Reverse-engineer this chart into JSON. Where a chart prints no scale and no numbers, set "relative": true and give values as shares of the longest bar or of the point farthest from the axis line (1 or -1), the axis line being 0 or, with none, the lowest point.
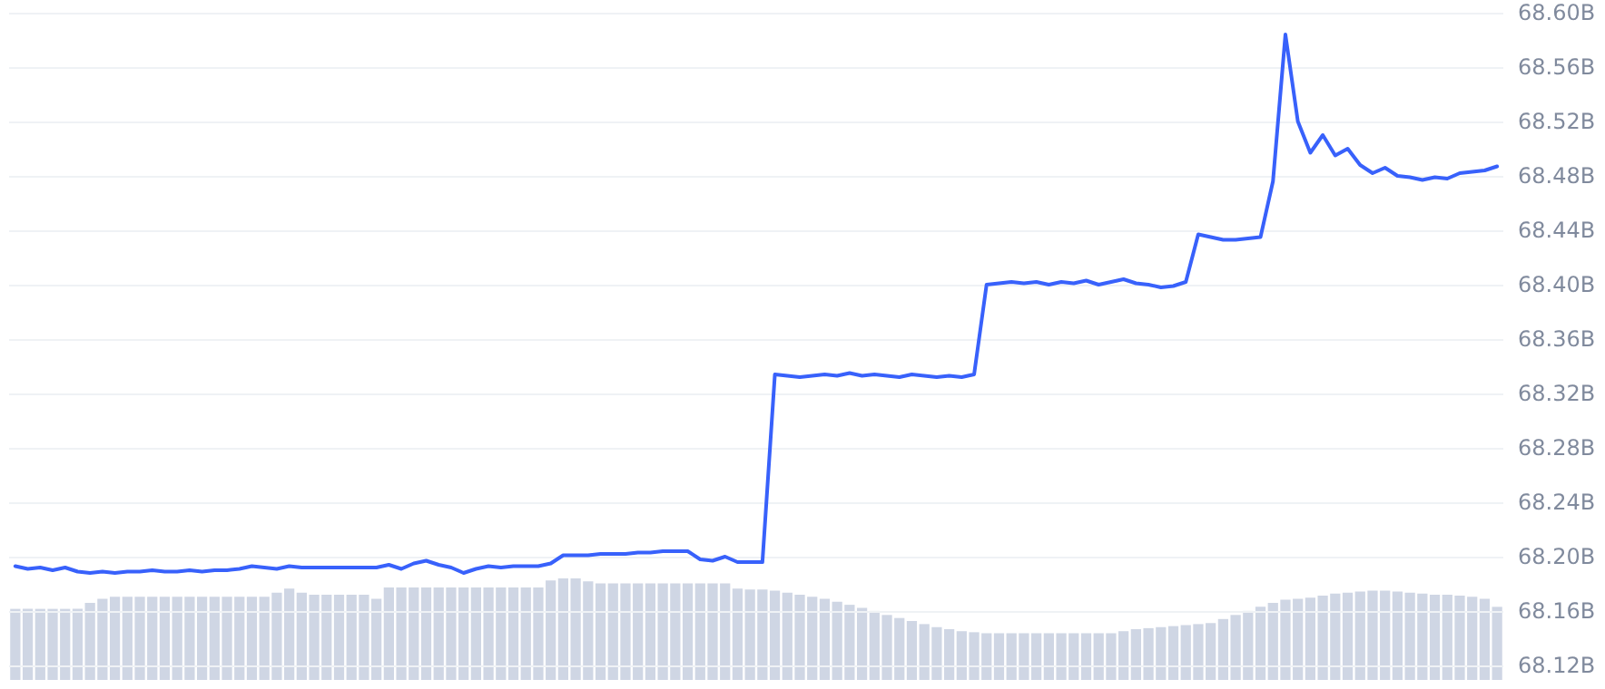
{
  "chart_data": [
    {
      "type": "line",
      "categories": [
        null,
        null,
        null,
        null,
        null,
        null,
        null,
        null,
        null,
        null,
        null,
        null,
        null,
        null,
        null,
        null,
        null,
        null,
        null,
        null,
        null,
        null,
        null,
        null,
        null,
        null,
        null,
        null,
        null,
        null,
        null,
        null,
        null,
        null,
        null,
        null,
        null,
        null,
        null,
        null,
        null,
        null,
        null,
        null,
        null,
        null,
        null,
        null,
        null,
        null,
        null,
        null,
        null,
        null,
        null,
        null,
        null,
        null,
        null,
        null,
        null,
        null,
        null,
        null,
        null,
        null,
        null,
        null,
        null,
        null,
        null,
        null,
        null,
        null,
        null,
        null,
        null,
        null,
        null,
        null,
        null,
        null,
        null,
        null,
        null,
        null,
        null,
        null,
        null,
        null,
        null,
        null,
        null,
        null,
        null,
        null,
        null,
        null,
        null,
        null,
        null,
        null,
        null,
        null,
        null,
        null,
        null,
        null,
        null,
        null,
        null,
        null,
        null,
        null,
        null,
        null,
        null,
        null,
        null,
        null
      ],
      "color": "#3861fb",
      "values": [
        68.193,
        68.191,
        68.192,
        68.19,
        68.192,
        68.189,
        68.188,
        68.189,
        68.188,
        68.189,
        68.189,
        68.19,
        68.189,
        68.189,
        68.19,
        68.189,
        68.19,
        68.19,
        68.191,
        68.193,
        68.192,
        68.191,
        68.193,
        68.192,
        68.192,
        68.192,
        68.192,
        68.192,
        68.192,
        68.192,
        68.194,
        68.191,
        68.195,
        68.197,
        68.194,
        68.192,
        68.188,
        68.191,
        68.193,
        68.192,
        68.193,
        68.193,
        68.193,
        68.195,
        68.201,
        68.201,
        68.201,
        68.202,
        68.202,
        68.202,
        68.203,
        68.203,
        68.204,
        68.204,
        68.204,
        68.198,
        68.197,
        68.2,
        68.196,
        68.196,
        68.196,
        68.334,
        68.333,
        68.332,
        68.333,
        68.334,
        68.333,
        68.335,
        68.333,
        68.334,
        68.333,
        68.332,
        68.334,
        68.333,
        68.332,
        68.333,
        68.332,
        68.334,
        68.4,
        68.401,
        68.402,
        68.401,
        68.402,
        68.4,
        68.402,
        68.401,
        68.403,
        68.4,
        68.402,
        68.404,
        68.401,
        68.4,
        68.398,
        68.399,
        68.402,
        68.437,
        68.435,
        68.433,
        68.433,
        68.434,
        68.435,
        68.476,
        68.584,
        68.52,
        68.497,
        68.51,
        68.495,
        68.5,
        68.488,
        68.482,
        68.486,
        68.48,
        68.479,
        68.477,
        68.479,
        68.478,
        68.482,
        68.483,
        68.484,
        68.487
      ],
      "ylim": [
        68.12,
        68.6
      ],
      "yticks": [
        {
          "value": 68.12,
          "label": "68.12B"
        },
        {
          "value": 68.16,
          "label": "68.16B"
        },
        {
          "value": 68.2,
          "label": "68.20B"
        },
        {
          "value": 68.24,
          "label": "68.24B"
        },
        {
          "value": 68.28,
          "label": "68.28B"
        },
        {
          "value": 68.32,
          "label": "68.32B"
        },
        {
          "value": 68.36,
          "label": "68.36B"
        },
        {
          "value": 68.4,
          "label": "68.40B"
        },
        {
          "value": 68.44,
          "label": "68.44B"
        },
        {
          "value": 68.48,
          "label": "68.48B"
        },
        {
          "value": 68.52,
          "label": "68.52B"
        },
        {
          "value": 68.56,
          "label": "68.56B"
        },
        {
          "value": 68.6,
          "label": "68.60B"
        }
      ],
      "tick_labels": "y",
      "grid": "y",
      "marker": "none",
      "line_style": "solid"
    },
    {
      "type": "bar",
      "categories": [
        null,
        null,
        null,
        null,
        null,
        null,
        null,
        null,
        null,
        null,
        null,
        null,
        null,
        null,
        null,
        null,
        null,
        null,
        null,
        null,
        null,
        null,
        null,
        null,
        null,
        null,
        null,
        null,
        null,
        null,
        null,
        null,
        null,
        null,
        null,
        null,
        null,
        null,
        null,
        null,
        null,
        null,
        null,
        null,
        null,
        null,
        null,
        null,
        null,
        null,
        null,
        null,
        null,
        null,
        null,
        null,
        null,
        null,
        null,
        null,
        null,
        null,
        null,
        null,
        null,
        null,
        null,
        null,
        null,
        null,
        null,
        null,
        null,
        null,
        null,
        null,
        null,
        null,
        null,
        null,
        null,
        null,
        null,
        null,
        null,
        null,
        null,
        null,
        null,
        null,
        null,
        null,
        null,
        null,
        null,
        null,
        null,
        null,
        null,
        null,
        null,
        null,
        null,
        null,
        null,
        null,
        null,
        null,
        null,
        null,
        null,
        null,
        null,
        null,
        null,
        null,
        null,
        null,
        null,
        null
      ],
      "color": "#cfd6e4",
      "relative": true,
      "tick_labels": false,
      "values": [
        0.7,
        0.7,
        0.7,
        0.7,
        0.7,
        0.7,
        0.76,
        0.8,
        0.82,
        0.82,
        0.82,
        0.82,
        0.82,
        0.82,
        0.82,
        0.82,
        0.82,
        0.82,
        0.82,
        0.82,
        0.82,
        0.86,
        0.9,
        0.86,
        0.84,
        0.84,
        0.84,
        0.84,
        0.84,
        0.8,
        0.91,
        0.91,
        0.91,
        0.91,
        0.91,
        0.91,
        0.91,
        0.91,
        0.91,
        0.91,
        0.91,
        0.91,
        0.91,
        0.98,
        1,
        1,
        0.97,
        0.95,
        0.95,
        0.95,
        0.95,
        0.95,
        0.95,
        0.95,
        0.95,
        0.95,
        0.95,
        0.95,
        0.9,
        0.89,
        0.89,
        0.88,
        0.86,
        0.84,
        0.82,
        0.8,
        0.77,
        0.74,
        0.71,
        0.68,
        0.64,
        0.61,
        0.58,
        0.55,
        0.52,
        0.5,
        0.48,
        0.47,
        0.46,
        0.46,
        0.46,
        0.46,
        0.46,
        0.46,
        0.46,
        0.46,
        0.46,
        0.46,
        0.46,
        0.48,
        0.5,
        0.51,
        0.52,
        0.53,
        0.54,
        0.55,
        0.56,
        0.6,
        0.64,
        0.68,
        0.72,
        0.76,
        0.79,
        0.8,
        0.81,
        0.83,
        0.85,
        0.86,
        0.87,
        0.88,
        0.88,
        0.87,
        0.86,
        0.85,
        0.84,
        0.84,
        0.83,
        0.82,
        0.8,
        0.72
      ]
    }
  ]
}
